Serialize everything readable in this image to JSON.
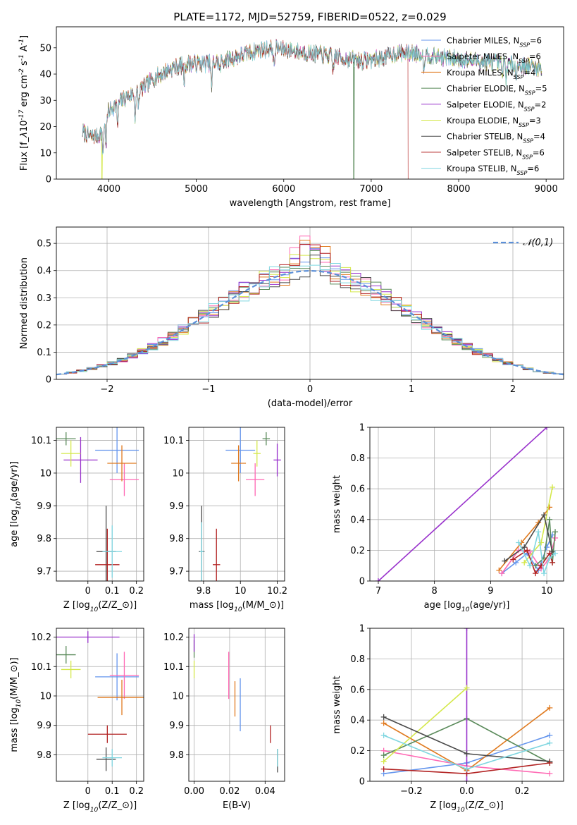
{
  "title": "PLATE=1172, MJD=52759, FIBERID=0522, z=0.029",
  "colors": [
    "#6495ed",
    "#ff69b4",
    "#e07a1f",
    "#5a8a5a",
    "#9932cc",
    "#d4e84a",
    "#4a4a4a",
    "#b22222",
    "#7fd6e0"
  ],
  "legend_entries": [
    "Chabrier MILES, N$_{SSP}$=6",
    "Salpeter MILES, N$_{SSP}$=6",
    "Kroupa MILES, N$_{SSP}$=4",
    "Chabrier ELODIE, N$_{SSP}$=5",
    "Salpeter ELODIE, N$_{SSP}$=2",
    "Kroupa ELODIE, N$_{SSP}$=3",
    "Chabrier STELIB, N$_{SSP}$=4",
    "Salpeter STELIB, N$_{SSP}$=6",
    "Kroupa STELIB, N$_{SSP}$=6"
  ],
  "chart_data": [
    {
      "id": "spectrum",
      "type": "line",
      "xlabel": "wavelength [Angstrom, rest frame]",
      "ylabel": "Flux [f$_\\lambda$10$^{-17}$ erg cm$^{-2}$ s$^{-1}$ A$^{-1}$]",
      "xlim": [
        3400,
        9200
      ],
      "ylim": [
        0,
        58
      ],
      "xticks": [
        4000,
        5000,
        6000,
        7000,
        8000,
        9000
      ],
      "yticks": [
        0,
        10,
        20,
        30,
        40,
        50
      ],
      "legend_loc": "upper right",
      "continuum": [
        [
          3700,
          18
        ],
        [
          3800,
          16
        ],
        [
          3900,
          17
        ],
        [
          4000,
          26
        ],
        [
          4100,
          29
        ],
        [
          4200,
          31
        ],
        [
          4300,
          33
        ],
        [
          4400,
          35
        ],
        [
          4500,
          38
        ],
        [
          4700,
          42
        ],
        [
          4900,
          44
        ],
        [
          5100,
          44
        ],
        [
          5300,
          45
        ],
        [
          5500,
          47
        ],
        [
          5700,
          49
        ],
        [
          5900,
          50
        ],
        [
          6100,
          49
        ],
        [
          6300,
          48
        ],
        [
          6500,
          47
        ],
        [
          6700,
          46
        ],
        [
          6900,
          45
        ],
        [
          7100,
          46
        ],
        [
          7300,
          48
        ],
        [
          7500,
          48
        ],
        [
          7700,
          47
        ],
        [
          7900,
          46
        ],
        [
          8200,
          45
        ],
        [
          8500,
          44
        ],
        [
          8800,
          43
        ],
        [
          9000,
          42
        ]
      ],
      "absorption_lines": [
        [
          3933,
          10
        ],
        [
          3968,
          9
        ],
        [
          4101,
          8
        ],
        [
          4300,
          9
        ],
        [
          4340,
          6
        ],
        [
          4861,
          6
        ],
        [
          5175,
          10
        ],
        [
          5270,
          4
        ],
        [
          5890,
          8
        ],
        [
          6563,
          6
        ],
        [
          7600,
          5
        ],
        [
          8498,
          4
        ],
        [
          8542,
          5
        ],
        [
          8662,
          4
        ]
      ],
      "dropouts": [
        {
          "series": 5,
          "x": 3920
        },
        {
          "series": 3,
          "x": 6800
        },
        {
          "series": 7,
          "x": 7420
        }
      ],
      "x_range": [
        3700,
        8950
      ]
    },
    {
      "id": "residuals",
      "type": "histogram",
      "xlabel": "(data-model)/error",
      "ylabel": "Normed distribution",
      "xlim": [
        -2.5,
        2.5
      ],
      "ylim": [
        0,
        0.56
      ],
      "xticks": [
        -2,
        -1,
        0,
        1,
        2
      ],
      "xtick_labels": [
        "−2",
        "−1",
        "0",
        "1",
        "2"
      ],
      "yticks": [
        0.0,
        0.1,
        0.2,
        0.3,
        0.4,
        0.5
      ],
      "bin_width": 0.1,
      "reference_label": "$\\mathcal{N}(0,1)$",
      "peak_values": [
        0.47,
        0.52,
        0.54,
        0.45,
        0.49,
        0.48,
        0.42,
        0.5,
        0.44
      ]
    },
    {
      "id": "age_vs_Z",
      "type": "errorbar",
      "xlabel": "Z [log$_{10}$(Z/Z$_\\odot$)]",
      "ylabel": "age  [log$_{10}$(age/yr)]",
      "xlim": [
        -0.13,
        0.23
      ],
      "ylim": [
        9.67,
        10.14
      ],
      "xticks": [
        0.0,
        0.1,
        0.2
      ],
      "yticks": [
        9.7,
        9.8,
        9.9,
        10.0,
        10.1
      ],
      "points": [
        {
          "x": 0.12,
          "y": 10.07,
          "xerr": 0.09,
          "yerr": 0.07
        },
        {
          "x": 0.15,
          "y": 9.98,
          "xerr": 0.06,
          "yerr": 0.05
        },
        {
          "x": 0.14,
          "y": 10.03,
          "xerr": 0.06,
          "yerr": 0.055
        },
        {
          "x": -0.09,
          "y": 10.105,
          "xerr": 0.04,
          "yerr": 0.02
        },
        {
          "x": -0.03,
          "y": 10.04,
          "xerr": 0.07,
          "yerr": 0.07
        },
        {
          "x": -0.07,
          "y": 10.06,
          "xerr": 0.04,
          "yerr": 0.04
        },
        {
          "x": 0.075,
          "y": 9.76,
          "xerr": 0.04,
          "yerr": 0.14
        },
        {
          "x": 0.08,
          "y": 9.72,
          "xerr": 0.05,
          "yerr": 0.11
        },
        {
          "x": 0.1,
          "y": 9.76,
          "xerr": 0.04,
          "yerr": 0.08
        }
      ]
    },
    {
      "id": "age_vs_mass",
      "type": "errorbar",
      "xlabel": "mass [log$_{10}$(M/M$_\\odot$)]",
      "ylabel": "",
      "xlim": [
        9.72,
        10.24
      ],
      "ylim": [
        9.67,
        10.14
      ],
      "xticks": [
        9.8,
        10.0,
        10.2
      ],
      "yticks": [
        9.7,
        9.8,
        9.9,
        10.0,
        10.1
      ],
      "points": [
        {
          "x": 10.0,
          "y": 10.07,
          "xerr": 0.08,
          "yerr": 0.07
        },
        {
          "x": 10.08,
          "y": 9.98,
          "xerr": 0.05,
          "yerr": 0.05
        },
        {
          "x": 9.99,
          "y": 10.03,
          "xerr": 0.04,
          "yerr": 0.055
        },
        {
          "x": 10.14,
          "y": 10.105,
          "xerr": 0.02,
          "yerr": 0.02
        },
        {
          "x": 10.2,
          "y": 10.04,
          "xerr": 0.02,
          "yerr": 0.05
        },
        {
          "x": 10.09,
          "y": 10.06,
          "xerr": 0.02,
          "yerr": 0.04
        },
        {
          "x": 9.79,
          "y": 9.76,
          "xerr": 0.015,
          "yerr": 0.14
        },
        {
          "x": 9.87,
          "y": 9.72,
          "xerr": 0.02,
          "yerr": 0.11
        },
        {
          "x": 9.79,
          "y": 9.76,
          "xerr": 0.01,
          "yerr": 0.09
        }
      ]
    },
    {
      "id": "mass_weight_vs_age",
      "type": "line",
      "xlabel": "age  [log$_{10}$(age/yr)]",
      "ylabel": "mass weight",
      "xlim": [
        6.85,
        10.3
      ],
      "ylim": [
        0,
        1.0
      ],
      "xticks": [
        7,
        8,
        9,
        10
      ],
      "yticks": [
        0.0,
        0.2,
        0.4,
        0.6,
        0.8,
        1.0
      ],
      "series": [
        {
          "x": [
            9.2,
            9.45,
            9.65,
            9.85,
            10.0,
            10.1
          ],
          "y": [
            0.05,
            0.12,
            0.18,
            0.07,
            0.22,
            0.3
          ]
        },
        {
          "x": [
            9.2,
            9.5,
            9.7,
            9.9,
            10.05,
            10.15
          ],
          "y": [
            0.05,
            0.2,
            0.19,
            0.08,
            0.15,
            0.28
          ]
        },
        {
          "x": [
            9.15,
            9.55,
            9.85,
            10.05
          ],
          "y": [
            0.07,
            0.25,
            0.38,
            0.48
          ]
        },
        {
          "x": [
            9.8,
            9.95,
            10.05,
            10.1,
            10.15
          ],
          "y": [
            0.1,
            0.15,
            0.4,
            0.12,
            0.32
          ]
        },
        {
          "x": [
            7.0,
            10.0
          ],
          "y": [
            0.0,
            1.0
          ]
        },
        {
          "x": [
            9.6,
            9.9,
            10.1
          ],
          "y": [
            0.12,
            0.25,
            0.61
          ]
        },
        {
          "x": [
            9.25,
            9.6,
            9.95,
            10.1
          ],
          "y": [
            0.13,
            0.22,
            0.43,
            0.19
          ]
        },
        {
          "x": [
            9.4,
            9.65,
            9.8,
            9.9,
            10.05,
            10.1
          ],
          "y": [
            0.14,
            0.2,
            0.05,
            0.1,
            0.18,
            0.12
          ]
        },
        {
          "x": [
            9.5,
            9.7,
            9.85,
            9.95,
            10.05,
            10.15
          ],
          "y": [
            0.25,
            0.1,
            0.32,
            0.05,
            0.15,
            0.18
          ]
        }
      ]
    },
    {
      "id": "mass_vs_Z",
      "type": "errorbar",
      "xlabel": "Z [log$_{10}$(Z/Z$_\\odot$)]",
      "ylabel": "mass [log$_{10}$(M/M$_\\odot$)]",
      "xlim": [
        -0.13,
        0.23
      ],
      "ylim": [
        9.71,
        10.23
      ],
      "xticks": [
        0.0,
        0.1,
        0.2
      ],
      "yticks": [
        9.8,
        9.9,
        10.0,
        10.1,
        10.2
      ],
      "points": [
        {
          "x": 0.12,
          "y": 10.065,
          "xerr": 0.09,
          "yerr": 0.08
        },
        {
          "x": 0.15,
          "y": 10.07,
          "xerr": 0.06,
          "yerr": 0.08
        },
        {
          "x": 0.14,
          "y": 9.995,
          "xerr": 0.1,
          "yerr": 0.06
        },
        {
          "x": -0.09,
          "y": 10.14,
          "xerr": 0.04,
          "yerr": 0.03
        },
        {
          "x": 0.0,
          "y": 10.2,
          "xerr": 0.13,
          "yerr": 0.02
        },
        {
          "x": -0.07,
          "y": 10.09,
          "xerr": 0.04,
          "yerr": 0.03
        },
        {
          "x": 0.075,
          "y": 9.785,
          "xerr": 0.04,
          "yerr": 0.04
        },
        {
          "x": 0.08,
          "y": 9.87,
          "xerr": 0.08,
          "yerr": 0.03
        },
        {
          "x": 0.1,
          "y": 9.79,
          "xerr": 0.04,
          "yerr": 0.03
        }
      ]
    },
    {
      "id": "mass_vs_EBV",
      "type": "errorbar",
      "xlabel": "E(B-V)",
      "ylabel": "",
      "xlim": [
        -0.003,
        0.051
      ],
      "ylim": [
        9.71,
        10.23
      ],
      "xticks": [
        0.0,
        0.02,
        0.04
      ],
      "xtick_labels": [
        "0.00",
        "0.02",
        "0.04"
      ],
      "yticks": [
        9.8,
        9.9,
        10.0,
        10.1,
        10.2
      ],
      "points": [
        {
          "x": 0.026,
          "y": 9.97,
          "xerr": 0,
          "yerr": 0.09
        },
        {
          "x": 0.0195,
          "y": 10.07,
          "xerr": 0,
          "yerr": 0.08
        },
        {
          "x": 0.023,
          "y": 9.99,
          "xerr": 0,
          "yerr": 0.06
        },
        {
          "x": 0.0,
          "y": 10.16,
          "xerr": 0,
          "yerr": 0.03
        },
        {
          "x": 0.0,
          "y": 10.18,
          "xerr": 0,
          "yerr": 0.03
        },
        {
          "x": 0.0,
          "y": 10.09,
          "xerr": 0,
          "yerr": 0.03
        },
        {
          "x": 0.047,
          "y": 9.78,
          "xerr": 0,
          "yerr": 0.04
        },
        {
          "x": 0.043,
          "y": 9.87,
          "xerr": 0,
          "yerr": 0.03
        },
        {
          "x": 0.047,
          "y": 9.79,
          "xerr": 0,
          "yerr": 0.03
        }
      ]
    },
    {
      "id": "mass_weight_vs_Z",
      "type": "line",
      "xlabel": "Z [log$_{10}$(Z/Z$_\\odot$)]",
      "ylabel": "mass weight",
      "xlim": [
        -0.35,
        0.35
      ],
      "ylim": [
        0,
        1.0
      ],
      "xticks": [
        -0.2,
        0.0,
        0.2
      ],
      "xtick_labels": [
        "−0.2",
        "0.0",
        "0.2"
      ],
      "yticks": [
        0.0,
        0.2,
        0.4,
        0.6,
        0.8,
        1.0
      ],
      "series": [
        {
          "x": [
            -0.3,
            0.0,
            0.3
          ],
          "y": [
            0.05,
            0.12,
            0.3
          ]
        },
        {
          "x": [
            -0.3,
            0.0,
            0.3
          ],
          "y": [
            0.2,
            0.1,
            0.05
          ]
        },
        {
          "x": [
            -0.3,
            0.0,
            0.3
          ],
          "y": [
            0.38,
            0.07,
            0.48
          ]
        },
        {
          "x": [
            -0.3,
            0.0,
            0.3
          ],
          "y": [
            0.17,
            0.41,
            0.12
          ]
        },
        {
          "x": [
            0.0,
            0.0
          ],
          "y": [
            0.0,
            1.0
          ]
        },
        {
          "x": [
            -0.3,
            0.0
          ],
          "y": [
            0.13,
            0.61
          ]
        },
        {
          "x": [
            -0.3,
            0.0,
            0.3
          ],
          "y": [
            0.42,
            0.18,
            0.13
          ]
        },
        {
          "x": [
            -0.3,
            0.0,
            0.3
          ],
          "y": [
            0.08,
            0.05,
            0.12
          ]
        },
        {
          "x": [
            -0.3,
            0.0,
            0.3
          ],
          "y": [
            0.3,
            0.08,
            0.25
          ]
        }
      ]
    }
  ]
}
